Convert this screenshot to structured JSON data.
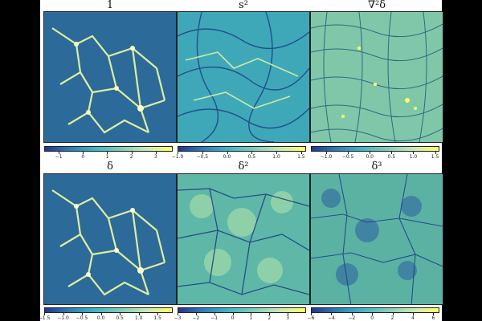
{
  "panels": [
    {
      "title": "1",
      "ticks": [
        "−1",
        "0",
        "1",
        "2",
        "3"
      ],
      "range": [
        -1.6,
        3.7
      ]
    },
    {
      "title": "s²",
      "ticks": [
        "−1.0",
        "−0.5",
        "0.0",
        "0.5",
        "1.0",
        "1.5"
      ],
      "range": [
        -1.0,
        1.6
      ]
    },
    {
      "title": "∇²δ",
      "ticks": [
        "−1.0",
        "−0.5",
        "0.0",
        "0.5",
        "1.0",
        "1.5"
      ],
      "range": [
        -1.35,
        1.6
      ]
    },
    {
      "title": "δ",
      "ticks": [
        "−1.5",
        "−1.0",
        "−0.5",
        "0.0",
        "0.5",
        "1.0",
        "1.5"
      ],
      "range": [
        -1.5,
        1.9
      ]
    },
    {
      "title": "δ²",
      "ticks": [
        "−3",
        "−2",
        "−1",
        "0",
        "1",
        "2",
        "3"
      ],
      "range": [
        -3.0,
        4.0
      ]
    },
    {
      "title": "δ³",
      "ticks": [
        "−6",
        "−4",
        "−2",
        "0",
        "2",
        "4",
        "6"
      ],
      "range": [
        -6.0,
        6.6
      ]
    }
  ],
  "colormap": {
    "stops": [
      "#253494",
      "#2c7fb8",
      "#41b6c4",
      "#7fcdbb",
      "#c7e9b4",
      "#ffff66"
    ]
  }
}
